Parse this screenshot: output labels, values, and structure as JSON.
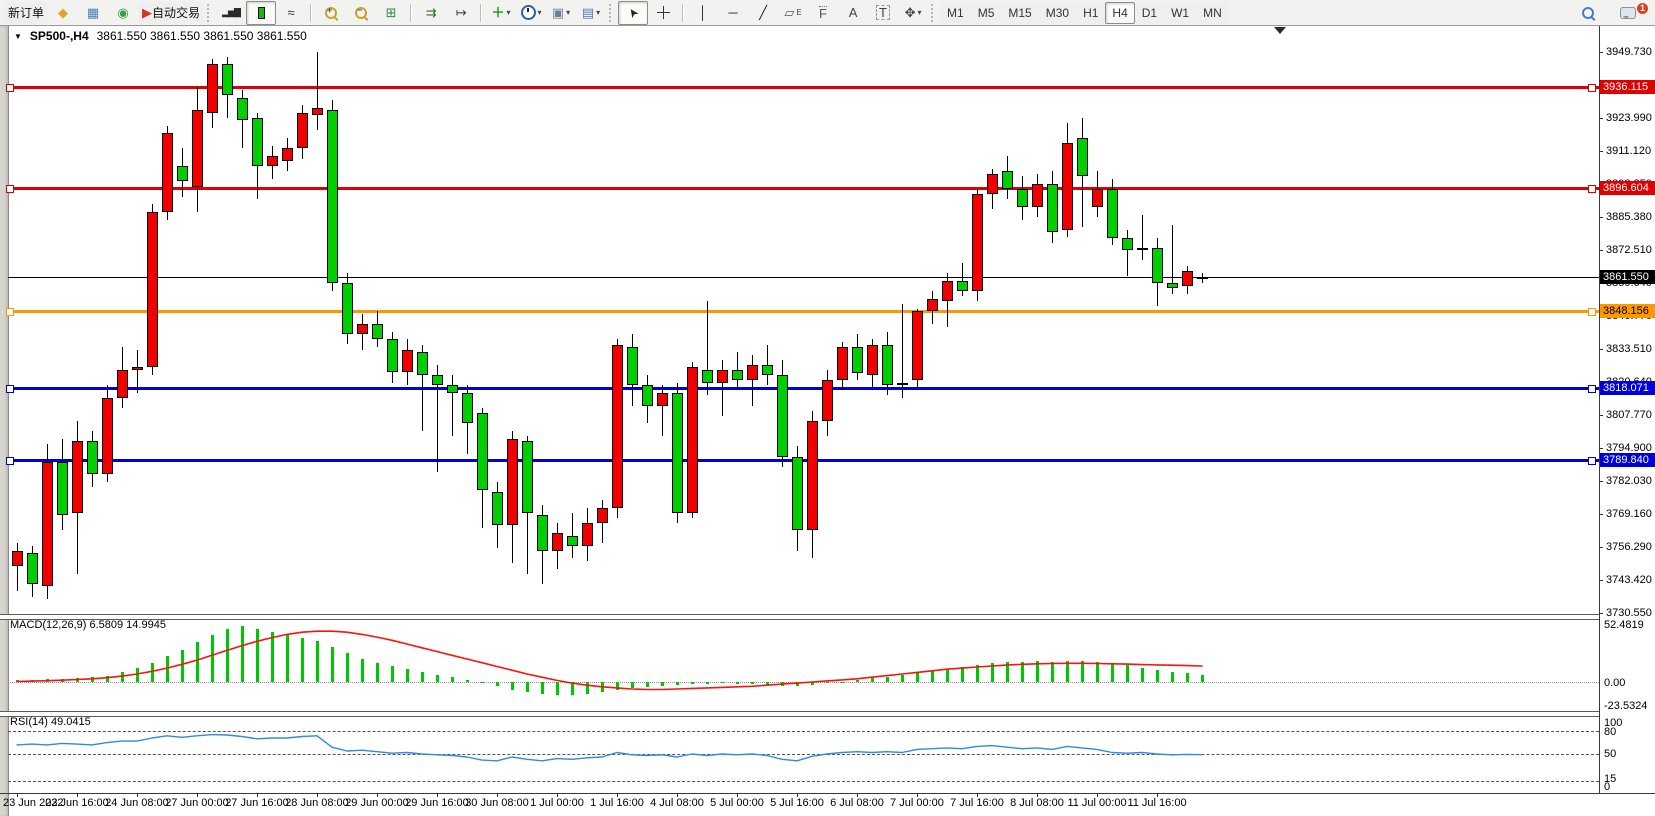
{
  "window": {
    "symbol_period": "SP500-,H4",
    "ohlc_text": "3861.550 3861.550 3861.550 3861.550"
  },
  "toolbar": {
    "new_order_label": "新订单",
    "autotrading_label": "自动交易",
    "periods": [
      "M1",
      "M5",
      "M15",
      "M30",
      "H1",
      "H4",
      "D1",
      "W1",
      "MN"
    ],
    "active_period": "H4",
    "notification_count": "1",
    "icons": [
      {
        "name": "market-watch-icon",
        "glyph": "◆",
        "color": "#d8a826"
      },
      {
        "name": "data-window-icon",
        "glyph": "▦",
        "color": "#4a7ebb"
      },
      {
        "name": "navigator-icon",
        "glyph": "◉",
        "color": "#3aa13a"
      },
      {
        "name": "autotrading-icon",
        "glyph": "▶",
        "color": "#c93a2a"
      },
      {
        "name": "bar-chart-icon",
        "glyph": "▂▅▇",
        "color": "#2a2a2a"
      },
      {
        "name": "candlestick-chart-icon",
        "glyph": "",
        "color": "#21b021"
      },
      {
        "name": "line-chart-icon",
        "glyph": "≈",
        "color": "#333333"
      },
      {
        "name": "zoom-in-icon",
        "glyph": "+",
        "color": "#c9a227"
      },
      {
        "name": "zoom-out-icon",
        "glyph": "-",
        "color": "#c9a227"
      },
      {
        "name": "tile-windows-icon",
        "glyph": "⊞",
        "color": "#2d8a3e"
      },
      {
        "name": "auto-scroll-icon",
        "glyph": "⇉",
        "color": "#2f6f2f"
      },
      {
        "name": "chart-shift-icon",
        "glyph": "↦",
        "color": "#444444"
      },
      {
        "name": "indicators-icon",
        "glyph": "＋",
        "color": "#18a018",
        "caret": true
      },
      {
        "name": "periods-icon",
        "glyph": "",
        "color": "#2d5fa8",
        "caret": true
      },
      {
        "name": "templates-icon",
        "glyph": "▣",
        "color": "#6a7f9a",
        "caret": true
      },
      {
        "name": "chart-style-icon",
        "glyph": "▤",
        "color": "#5577aa",
        "caret": true
      },
      {
        "name": "cursor-icon",
        "glyph": "➤",
        "color": "#222222"
      },
      {
        "name": "crosshair-icon",
        "glyph": "",
        "color": "#333333"
      },
      {
        "name": "vertical-line-icon",
        "glyph": "│",
        "color": "#333333"
      },
      {
        "name": "horizontal-line-icon",
        "glyph": "─",
        "color": "#333333"
      },
      {
        "name": "trendline-icon",
        "glyph": "╱",
        "color": "#333333"
      },
      {
        "name": "equidistant-channel-icon",
        "glyph": "▱",
        "color": "#555555"
      },
      {
        "name": "fibonacci-icon",
        "glyph": "F",
        "color": "#555555"
      },
      {
        "name": "text-icon",
        "glyph": "A",
        "color": "#444444"
      },
      {
        "name": "text-label-icon",
        "glyph": "T",
        "color": "#444444"
      },
      {
        "name": "arrows-icon",
        "glyph": "✥",
        "color": "#444444",
        "caret": true
      },
      {
        "name": "search-icon",
        "glyph": "",
        "color": "#4a7ebb"
      },
      {
        "name": "chat-icon",
        "glyph": "",
        "color": "#8a8f98"
      }
    ]
  },
  "chart_data": {
    "type": "candlestick",
    "symbol": "SP500-",
    "timeframe": "H4",
    "colors": {
      "bull": "#f20000",
      "bear": "#00ce00",
      "wick": "#000000",
      "red_line": "#e00000",
      "orange_line": "#ff9800",
      "blue_line": "#0000dd",
      "current_line": "#000000",
      "macd_hist": "#00c800",
      "macd_signal": "#ff1010",
      "rsi_line": "#2e8be0"
    },
    "y_ticks": [
      "3949.730",
      "3936.860",
      "3923.990",
      "3911.120",
      "3898.250",
      "3885.380",
      "3872.510",
      "3859.640",
      "3846.770",
      "3833.510",
      "3820.640",
      "3807.770",
      "3794.900",
      "3782.030",
      "3769.160",
      "3756.290",
      "3743.420",
      "3730.550"
    ],
    "x_labels": [
      "23 Jun 2022",
      "23 Jun 16:00",
      "24 Jun 08:00",
      "27 Jun 00:00",
      "27 Jun 16:00",
      "28 Jun 08:00",
      "29 Jun 00:00",
      "29 Jun 16:00",
      "30 Jun 08:00",
      "1 Jul 00:00",
      "1 Jul 16:00",
      "4 Jul 08:00",
      "5 Jul 00:00",
      "5 Jul 16:00",
      "6 Jul 08:00",
      "7 Jul 00:00",
      "7 Jul 16:00",
      "8 Jul 08:00",
      "11 Jul 00:00",
      "11 Jul 16:00"
    ],
    "hlines": [
      {
        "name": "resistance-1",
        "price": "3936.115",
        "value": 3936.115,
        "color": "#e00000",
        "text_color": "#ffffff"
      },
      {
        "name": "resistance-2",
        "price": "3896.604",
        "value": 3896.604,
        "color": "#e00000",
        "text_color": "#ffffff"
      },
      {
        "name": "pivot",
        "price": "3848.156",
        "value": 3848.156,
        "color": "#ff9800",
        "text_color": "#000000"
      },
      {
        "name": "support-1",
        "price": "3818.071",
        "value": 3818.071,
        "color": "#0000dd",
        "text_color": "#ffffff"
      },
      {
        "name": "support-2",
        "price": "3789.840",
        "value": 3789.84,
        "color": "#0000dd",
        "text_color": "#ffffff"
      }
    ],
    "current_price": {
      "price": "3861.550",
      "value": 3861.55
    },
    "candles": [
      [
        3748,
        3757,
        3738,
        3754
      ],
      [
        3753,
        3756,
        3736,
        3741
      ],
      [
        3740,
        3796,
        3735,
        3789
      ],
      [
        3789,
        3798,
        3762,
        3768
      ],
      [
        3769,
        3805,
        3745,
        3797
      ],
      [
        3797,
        3801,
        3779,
        3784
      ],
      [
        3784,
        3819,
        3781,
        3814
      ],
      [
        3814,
        3834,
        3810,
        3825
      ],
      [
        3825,
        3833,
        3816,
        3826
      ],
      [
        3826,
        3890,
        3823,
        3887
      ],
      [
        3887,
        3921,
        3884,
        3918
      ],
      [
        3905,
        3912,
        3893,
        3899
      ],
      [
        3897,
        3936,
        3887,
        3927
      ],
      [
        3926,
        3947,
        3920,
        3945
      ],
      [
        3945,
        3948,
        3924,
        3933
      ],
      [
        3932,
        3935,
        3912,
        3923
      ],
      [
        3924,
        3926,
        3892,
        3905
      ],
      [
        3905,
        3913,
        3900,
        3909
      ],
      [
        3907,
        3916,
        3903,
        3912
      ],
      [
        3912,
        3929,
        3908,
        3926
      ],
      [
        3925,
        3950,
        3919,
        3928
      ],
      [
        3927,
        3931,
        3856,
        3859
      ],
      [
        3859,
        3863,
        3835,
        3839
      ],
      [
        3839,
        3847,
        3833,
        3843
      ],
      [
        3843,
        3848,
        3834,
        3837
      ],
      [
        3837,
        3840,
        3820,
        3824
      ],
      [
        3824,
        3837,
        3819,
        3833
      ],
      [
        3832,
        3835,
        3801,
        3823
      ],
      [
        3823,
        3827,
        3785,
        3819
      ],
      [
        3819,
        3823,
        3799,
        3816
      ],
      [
        3816,
        3819,
        3792,
        3804
      ],
      [
        3808,
        3810,
        3763,
        3778
      ],
      [
        3777,
        3781,
        3755,
        3764
      ],
      [
        3764,
        3801,
        3749,
        3798
      ],
      [
        3797,
        3799,
        3745,
        3769
      ],
      [
        3768,
        3772,
        3741,
        3754
      ],
      [
        3754,
        3765,
        3747,
        3761
      ],
      [
        3760,
        3769,
        3751,
        3756
      ],
      [
        3756,
        3771,
        3750,
        3765
      ],
      [
        3765,
        3774,
        3757,
        3771
      ],
      [
        3771,
        3837,
        3767,
        3835
      ],
      [
        3834,
        3839,
        3811,
        3819
      ],
      [
        3819,
        3823,
        3804,
        3811
      ],
      [
        3811,
        3819,
        3799,
        3816
      ],
      [
        3816,
        3820,
        3765,
        3769
      ],
      [
        3769,
        3828,
        3767,
        3826
      ],
      [
        3825,
        3852,
        3815,
        3820
      ],
      [
        3820,
        3829,
        3807,
        3825
      ],
      [
        3825,
        3832,
        3817,
        3821
      ],
      [
        3821,
        3831,
        3811,
        3827
      ],
      [
        3827,
        3835,
        3819,
        3823
      ],
      [
        3823,
        3829,
        3787,
        3791
      ],
      [
        3791,
        3795,
        3754,
        3762
      ],
      [
        3762,
        3809,
        3751,
        3805
      ],
      [
        3805,
        3825,
        3799,
        3821
      ],
      [
        3821,
        3836,
        3817,
        3834
      ],
      [
        3834,
        3839,
        3821,
        3824
      ],
      [
        3823,
        3837,
        3818,
        3835
      ],
      [
        3835,
        3840,
        3815,
        3819
      ],
      [
        3819,
        3851,
        3814,
        3820
      ],
      [
        3821,
        3849,
        3818,
        3848
      ],
      [
        3848,
        3856,
        3843,
        3853
      ],
      [
        3852,
        3863,
        3842,
        3860
      ],
      [
        3860,
        3867,
        3854,
        3856
      ],
      [
        3856,
        3896,
        3852,
        3894
      ],
      [
        3894,
        3904,
        3888,
        3902
      ],
      [
        3903,
        3909,
        3892,
        3896
      ],
      [
        3896,
        3901,
        3884,
        3889
      ],
      [
        3889,
        3902,
        3885,
        3898
      ],
      [
        3898,
        3903,
        3875,
        3879
      ],
      [
        3880,
        3922,
        3877,
        3914
      ],
      [
        3916,
        3924,
        3881,
        3901
      ],
      [
        3889,
        3903,
        3885,
        3896
      ],
      [
        3896,
        3900,
        3874,
        3877
      ],
      [
        3877,
        3880,
        3862,
        3872
      ],
      [
        3872,
        3886,
        3868,
        3873
      ],
      [
        3873,
        3877,
        3850,
        3859
      ],
      [
        3859,
        3882,
        3855,
        3857
      ],
      [
        3858,
        3866,
        3855,
        3864
      ],
      [
        3861,
        3863,
        3859,
        3861.55
      ]
    ],
    "indicators": {
      "macd": {
        "label": "MACD(12,26,9) 6.5809 14.9945",
        "axis": [
          "52.4819",
          "0.00",
          "-23.5324"
        ],
        "values": [
          1.5,
          2,
          2.5,
          3,
          4,
          4.5,
          6,
          9,
          13,
          18,
          24,
          30,
          37,
          44,
          50,
          52.5,
          50,
          47,
          44,
          41,
          38,
          33,
          27,
          22,
          18,
          15,
          12,
          9.5,
          7,
          5,
          2,
          -1,
          -4,
          -7,
          -9.5,
          -11,
          -12.5,
          -12,
          -11,
          -9.5,
          -7,
          -5.5,
          -4.5,
          -3.5,
          -3,
          -2,
          -1.5,
          -1,
          -1.5,
          -2,
          -2.5,
          -3.5,
          -4,
          -2.5,
          -1,
          0.5,
          2,
          3.5,
          5,
          6.5,
          8.5,
          10.5,
          12.5,
          14,
          16,
          17.5,
          18.5,
          19,
          19.5,
          19,
          19.5,
          20,
          19,
          17.5,
          15.5,
          13.5,
          11.5,
          9.5,
          8,
          6.58
        ],
        "signal": [
          0.5,
          0.8,
          1.2,
          1.7,
          2.3,
          3,
          4,
          5.5,
          7.5,
          10,
          13,
          16.5,
          20.5,
          25,
          29.5,
          34,
          38,
          41.5,
          44.5,
          46.5,
          47.5,
          47.5,
          46.5,
          44.5,
          42,
          39,
          35.5,
          32,
          28.5,
          25,
          21.5,
          18,
          14.5,
          11,
          7.5,
          4.5,
          1.5,
          -1,
          -3,
          -4.5,
          -5.5,
          -6.5,
          -7,
          -7,
          -6.5,
          -6,
          -5.5,
          -5,
          -4.5,
          -4,
          -3,
          -2,
          -1,
          0,
          1,
          2,
          3,
          4.5,
          6,
          7.5,
          9,
          10.5,
          12,
          13,
          14,
          15,
          15.8,
          16.5,
          17,
          17.3,
          17.5,
          17.5,
          17.3,
          17,
          16.7,
          16.3,
          16,
          15.7,
          15.3,
          14.99
        ]
      },
      "rsi": {
        "label": "RSI(14) 49.0415",
        "axis": [
          "100",
          "80",
          "50",
          "15",
          "0"
        ],
        "levels": [
          80,
          50,
          15
        ],
        "values": [
          62,
          63,
          62,
          64,
          63,
          62,
          65,
          67,
          67,
          71,
          74,
          72,
          74,
          75.5,
          75,
          73,
          70,
          71,
          71,
          73,
          74,
          59,
          54,
          55,
          53,
          51,
          52,
          50,
          49,
          48,
          46,
          42,
          41,
          46,
          43,
          41,
          44,
          43,
          45,
          46,
          52,
          49,
          48,
          49,
          46,
          50,
          48,
          50,
          49,
          50,
          48,
          43,
          41,
          47,
          50,
          52,
          53,
          52,
          53,
          52,
          56,
          57,
          58,
          57,
          60,
          61,
          59,
          57,
          58,
          56,
          60,
          58,
          56,
          52,
          51,
          52,
          50,
          49,
          49.5,
          49.04
        ]
      }
    }
  }
}
